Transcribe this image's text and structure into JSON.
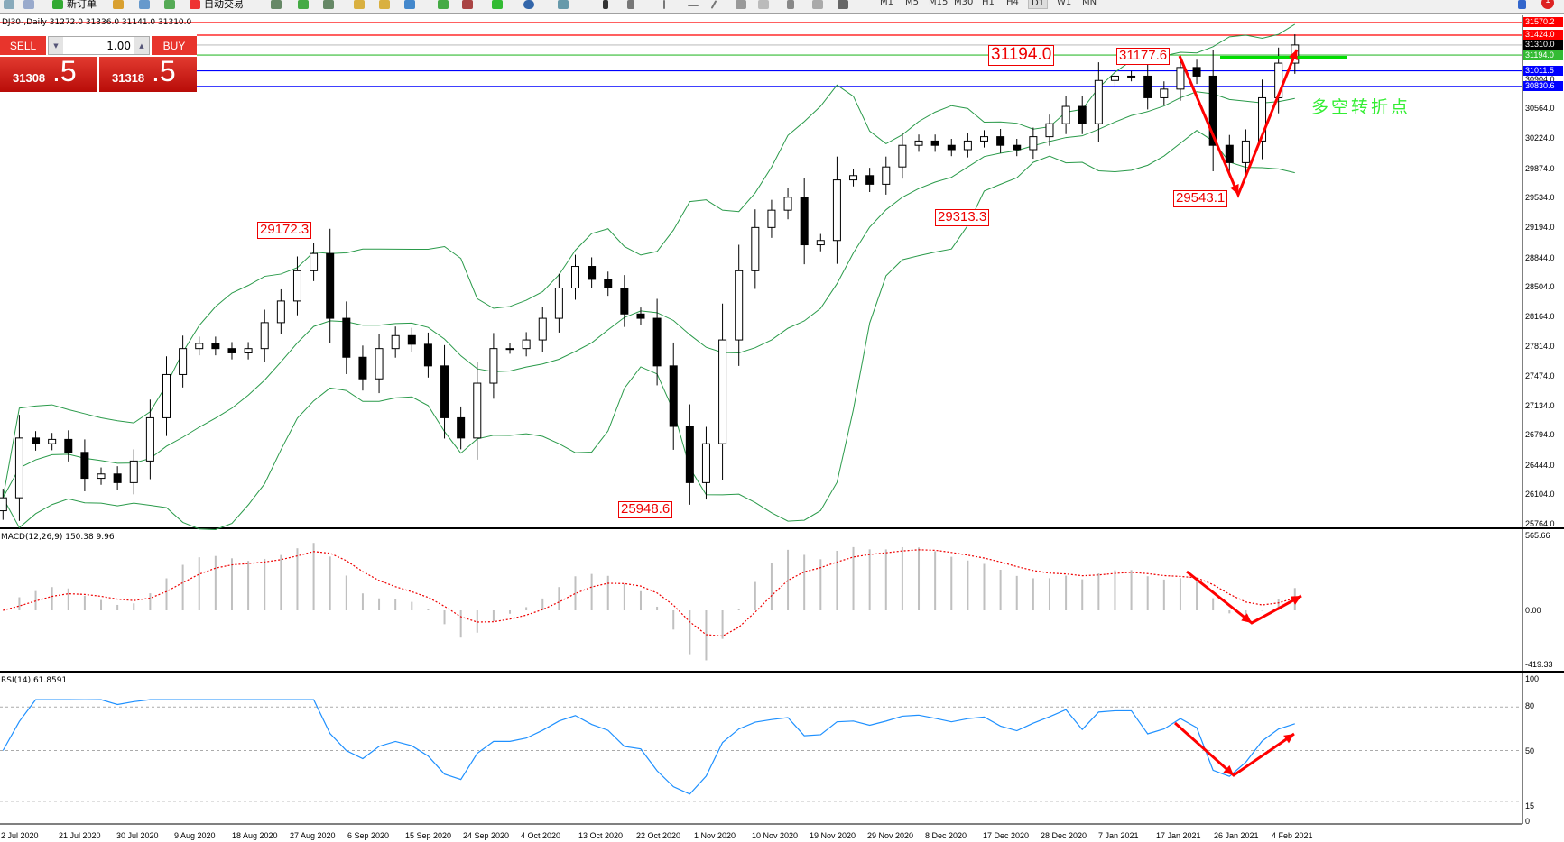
{
  "toolbar": {
    "new_order": "新订单",
    "auto_trade": "自动交易",
    "timeframes": [
      "M1",
      "M5",
      "M15",
      "M30",
      "H1",
      "H4",
      "D1",
      "W1",
      "MN"
    ],
    "active_timeframe": "D1",
    "notification_count": "1"
  },
  "chart": {
    "title": "DJ30-,Daily  31272.0 31336.0 31141.0 31310.0"
  },
  "trade_panel": {
    "sell_label": "SELL",
    "buy_label": "BUY",
    "lot": "1.00",
    "sell_price_main": "31308",
    "sell_price_frac": ".5",
    "buy_price_main": "31318",
    "buy_price_frac": ".5"
  },
  "price_axis": {
    "ticks": [
      "30904.0",
      "30564.0",
      "30224.0",
      "29874.0",
      "29534.0",
      "29194.0",
      "28844.0",
      "28504.0",
      "28164.0",
      "27814.0",
      "27474.0",
      "27134.0",
      "26794.0",
      "26444.0",
      "26104.0",
      "25764.0"
    ],
    "levels": [
      {
        "value": "31570.2",
        "color": "#ff0000"
      },
      {
        "value": "31424.0",
        "color": "#ff0000"
      },
      {
        "value": "31310.0",
        "color": "#000000",
        "line": "#c0c0c0"
      },
      {
        "value": "31194.0",
        "color": "#33bb33"
      },
      {
        "value": "31011.5",
        "color": "#0000ff"
      },
      {
        "value": "30830.6",
        "color": "#0000ff"
      }
    ]
  },
  "annotations": {
    "labels": [
      "31194.0",
      "31177.6",
      "29172.3",
      "25948.6",
      "29313.3",
      "29543.1"
    ],
    "reversal_text": "多空转折点",
    "accent": "#ff0000",
    "reversal_color": "#33ee33"
  },
  "macd": {
    "label": "MACD(12,26,9) 150.38 9.96",
    "ticks": [
      "565.66",
      "0.00",
      "-419.33"
    ]
  },
  "rsi": {
    "label": "RSI(14) 61.8591",
    "ticks": [
      "100",
      "80",
      "50",
      "15",
      "0"
    ]
  },
  "dates": [
    "2 Jul 2020",
    "21 Jul 2020",
    "30 Jul 2020",
    "9 Aug 2020",
    "18 Aug 2020",
    "27 Aug 2020",
    "6 Sep 2020",
    "15 Sep 2020",
    "24 Sep 2020",
    "4 Oct 2020",
    "13 Oct 2020",
    "22 Oct 2020",
    "1 Nov 2020",
    "10 Nov 2020",
    "19 Nov 2020",
    "29 Nov 2020",
    "8 Dec 2020",
    "17 Dec 2020",
    "28 Dec 2020",
    "7 Jan 2021",
    "17 Jan 2021",
    "26 Jan 2021",
    "4 Feb 2021"
  ],
  "chart_data": {
    "type": "candlestick",
    "symbol": "DJ30-",
    "timeframe": "Daily",
    "closes": [
      26075,
      26766,
      26700,
      26750,
      26600,
      26300,
      26350,
      26250,
      26500,
      27000,
      27500,
      27800,
      27860,
      27800,
      27750,
      27800,
      28100,
      28350,
      28700,
      28900,
      28150,
      27700,
      27450,
      27800,
      27950,
      27850,
      27600,
      27000,
      26766,
      27400,
      27800,
      27800,
      27900,
      28150,
      28500,
      28750,
      28600,
      28500,
      28200,
      28150,
      27600,
      26900,
      26250,
      26700,
      27900,
      28700,
      29200,
      29400,
      29550,
      29000,
      29050,
      29750,
      29800,
      29700,
      29900,
      30150,
      30200,
      30150,
      30100,
      30200,
      30250,
      30150,
      30100,
      30250,
      30400,
      30600,
      30400,
      30900,
      30950,
      30950,
      30700,
      30800,
      31050,
      30950,
      30150,
      29950,
      30200,
      30700,
      31100,
      31310
    ],
    "ylim": [
      25764,
      31570.2
    ],
    "indicators": [
      "Bollinger Bands",
      "MACD(12,26,9)",
      "RSI(14)"
    ]
  }
}
